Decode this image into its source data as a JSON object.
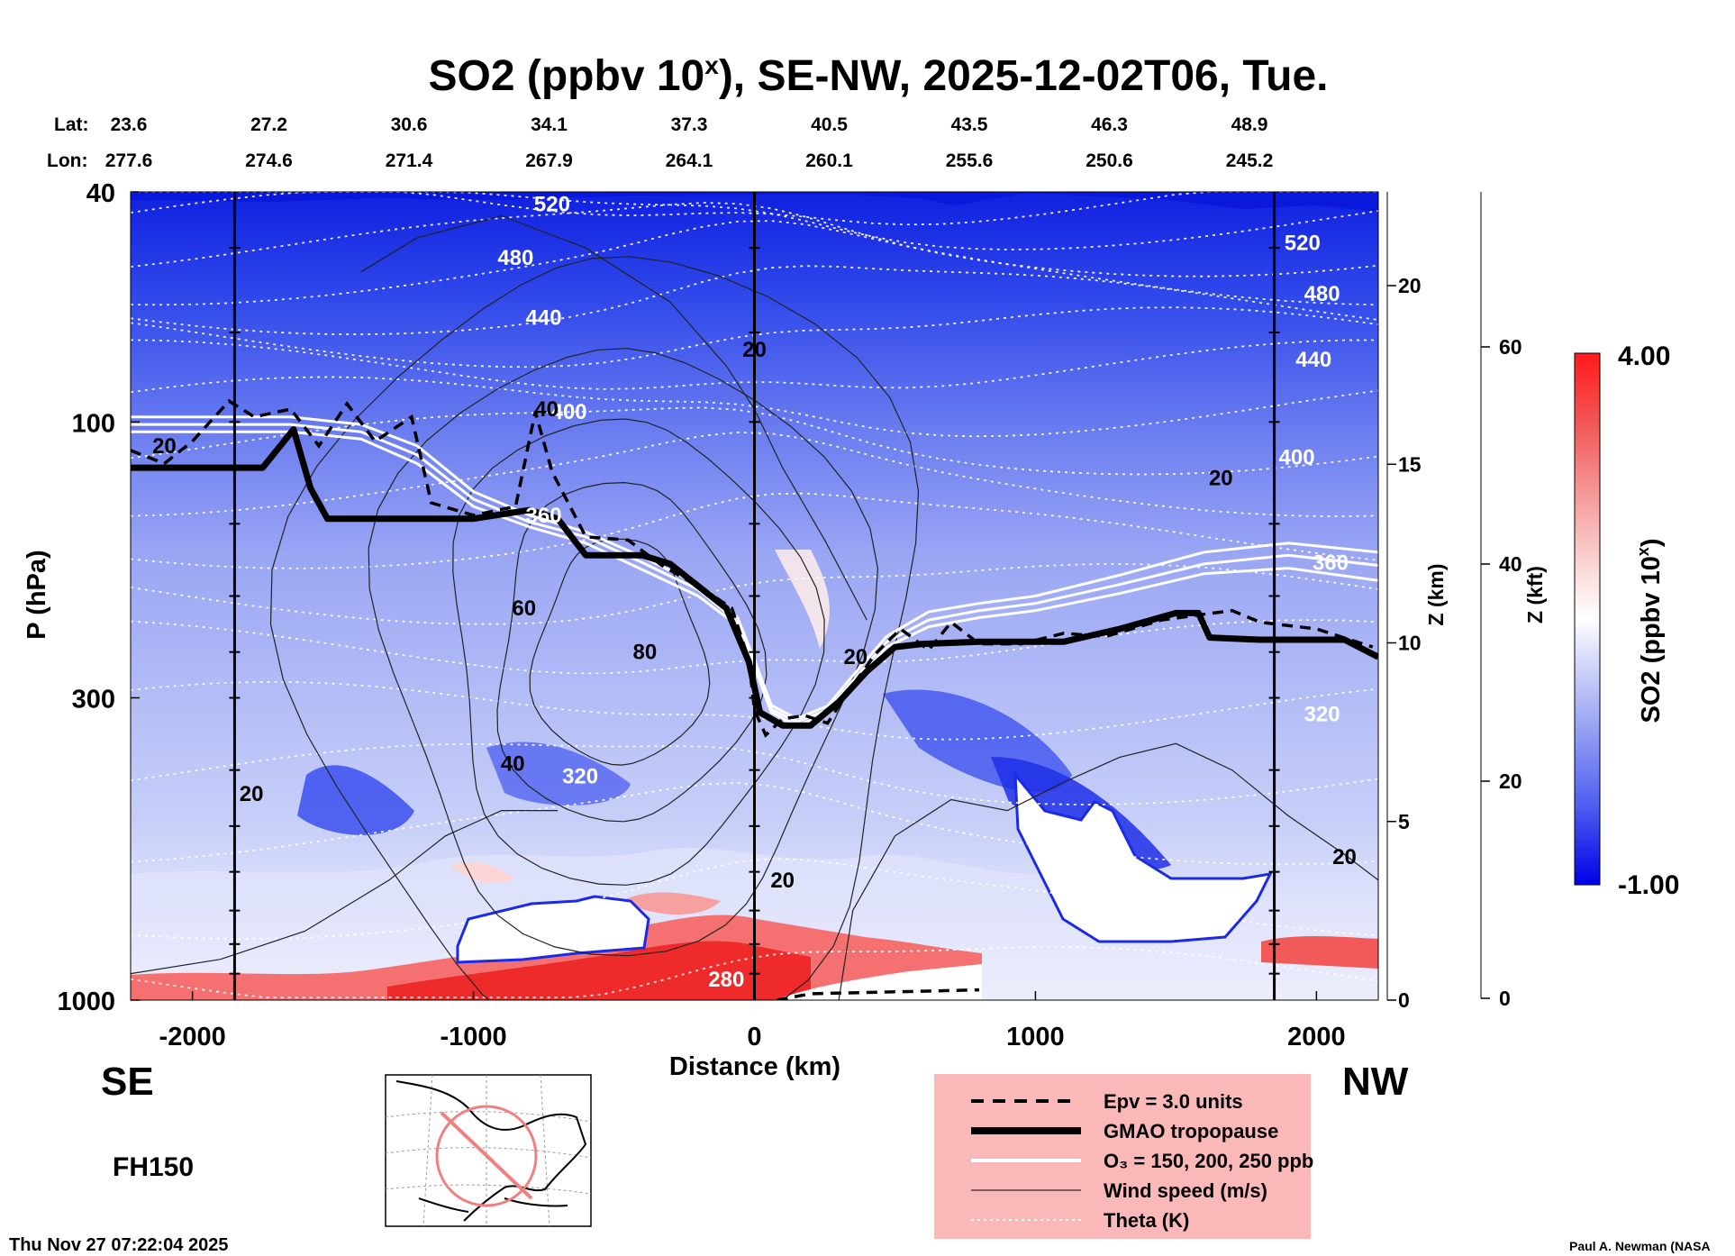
{
  "title": "SO2 (ppbv 10",
  "title_sup": "x",
  "title_rest": "), SE-NW, 2025-12-02T06, Tue.",
  "lat_label": "Lat:",
  "lon_label": "Lon:",
  "lats": [
    "23.6",
    "27.2",
    "30.6",
    "34.1",
    "37.3",
    "40.5",
    "43.5",
    "46.3",
    "48.9"
  ],
  "lons": [
    "277.6",
    "274.6",
    "271.4",
    "267.9",
    "264.1",
    "260.1",
    "255.6",
    "250.6",
    "245.2"
  ],
  "y_label": "P (hPa)",
  "x_label": "Distance (km)",
  "z_km_label": "Z (km)",
  "z_kft_label": "Z (kft)",
  "left_dir": "SE",
  "right_dir": "NW",
  "forecast_hour": "FH150",
  "timestamp": "Thu Nov 27 07:22:04 2025",
  "credit": "Paul A. Newman (NASA",
  "legend": [
    {
      "key": "epv",
      "label": "Epv = 3.0 units"
    },
    {
      "key": "trop",
      "label": "GMAO tropopause"
    },
    {
      "key": "o3",
      "label": "O₃ = 150, 200, 250 ppb"
    },
    {
      "key": "wind",
      "label": "Wind speed (m/s)"
    },
    {
      "key": "theta",
      "label": "Theta (K)"
    }
  ],
  "colorbar": {
    "label": "SO2 (ppbv 10",
    "label_sup": "x",
    "label_end": ")",
    "max_label": "4.00",
    "min_label": "-1.00",
    "vmin": -1.0,
    "vmax": 4.0,
    "colors": [
      "#0000e6",
      "#4f5ff0",
      "#9aa4f4",
      "#d4d8fa",
      "#ffffff",
      "#fcd6d6",
      "#f7a0a0",
      "#f25a5a",
      "#ff1a1a"
    ]
  },
  "chart_data": {
    "type": "heatmap",
    "title": "SO2 (ppbv 10^x), SE-NW, 2025-12-02T06, Tue.",
    "xlabel": "Distance (km)",
    "ylabel": "P (hPa)",
    "xlim": [
      -2220,
      2220
    ],
    "ylim_hpa": [
      1000,
      40
    ],
    "x_ticks": [
      -2000,
      -1000,
      0,
      1000,
      2000
    ],
    "x_tick_labels": [
      "-2000",
      "-1000",
      "0",
      "1000",
      "2000"
    ],
    "y_ticks": [
      1000,
      300,
      100,
      40
    ],
    "y_tick_labels": [
      "1000",
      "300",
      "100",
      "40"
    ],
    "z_km_ticks": [
      0,
      5,
      10,
      15,
      20
    ],
    "z_km_tick_labels": [
      "0",
      "5",
      "10",
      "15",
      "20"
    ],
    "z_kft_ticks": [
      0,
      20,
      40,
      60
    ],
    "z_kft_tick_labels": [
      "0",
      "20",
      "40",
      "60"
    ],
    "vertical_lines_km": [
      -1850,
      0,
      1850
    ],
    "colorbar_range": [
      -1.0,
      4.0
    ],
    "theta_levels": [
      {
        "value": "520",
        "label_x": -720,
        "label_p": 42
      },
      {
        "value": "480",
        "label_x": -850,
        "label_p": 52
      },
      {
        "value": "440",
        "label_x": -750,
        "label_p": 66
      },
      {
        "value": "400",
        "label_x": -660,
        "label_p": 96
      },
      {
        "value": "360",
        "label_x": -750,
        "label_p": 145
      },
      {
        "value": "320",
        "label_x": -620,
        "label_p": 410
      },
      {
        "value": "280",
        "label_x": -100,
        "label_p": 920
      },
      {
        "value": "520",
        "label_x": 1950,
        "label_p": 49
      },
      {
        "value": "480",
        "label_x": 2020,
        "label_p": 60
      },
      {
        "value": "440",
        "label_x": 1990,
        "label_p": 78
      },
      {
        "value": "400",
        "label_x": 1930,
        "label_p": 115
      },
      {
        "value": "360",
        "label_x": 2050,
        "label_p": 175
      },
      {
        "value": "320",
        "label_x": 2020,
        "label_p": 320
      }
    ],
    "wind_labels": [
      {
        "value": "20",
        "label_x": -2100,
        "label_p": 110
      },
      {
        "value": "40",
        "label_x": -740,
        "label_p": 95
      },
      {
        "value": "60",
        "label_x": -820,
        "label_p": 210
      },
      {
        "value": "80",
        "label_x": -390,
        "label_p": 250
      },
      {
        "value": "40",
        "label_x": -860,
        "label_p": 390
      },
      {
        "value": "20",
        "label_x": -1790,
        "label_p": 440
      },
      {
        "value": "20",
        "label_x": 0,
        "label_p": 75
      },
      {
        "value": "20",
        "label_x": 360,
        "label_p": 255
      },
      {
        "value": "20",
        "label_x": 100,
        "label_p": 620
      },
      {
        "value": "20",
        "label_x": 1660,
        "label_p": 125
      },
      {
        "value": "20",
        "label_x": 2100,
        "label_p": 565
      }
    ],
    "tropopause_hpa": [
      [
        -2220,
        120
      ],
      [
        -1750,
        120
      ],
      [
        -1640,
        103
      ],
      [
        -1580,
        130
      ],
      [
        -1520,
        147
      ],
      [
        -1300,
        147
      ],
      [
        -1000,
        147
      ],
      [
        -800,
        142
      ],
      [
        -700,
        147
      ],
      [
        -600,
        170
      ],
      [
        -400,
        170
      ],
      [
        -300,
        176
      ],
      [
        -100,
        210
      ],
      [
        -20,
        260
      ],
      [
        20,
        318
      ],
      [
        100,
        335
      ],
      [
        200,
        335
      ],
      [
        300,
        305
      ],
      [
        400,
        270
      ],
      [
        500,
        245
      ],
      [
        600,
        242
      ],
      [
        800,
        240
      ],
      [
        1100,
        240
      ],
      [
        1300,
        228
      ],
      [
        1500,
        214
      ],
      [
        1580,
        214
      ],
      [
        1620,
        236
      ],
      [
        1800,
        238
      ],
      [
        2100,
        238
      ],
      [
        2220,
        255
      ]
    ],
    "epv_3_hpa": [
      [
        -2220,
        112
      ],
      [
        -2100,
        118
      ],
      [
        -2000,
        108
      ],
      [
        -1870,
        92
      ],
      [
        -1780,
        98
      ],
      [
        -1650,
        95
      ],
      [
        -1550,
        110
      ],
      [
        -1450,
        93
      ],
      [
        -1350,
        108
      ],
      [
        -1220,
        98
      ],
      [
        -1150,
        138
      ],
      [
        -1000,
        145
      ],
      [
        -850,
        140
      ],
      [
        -780,
        96
      ],
      [
        -720,
        122
      ],
      [
        -600,
        158
      ],
      [
        -450,
        160
      ],
      [
        -330,
        177
      ],
      [
        -180,
        195
      ],
      [
        -80,
        210
      ],
      [
        -20,
        258
      ],
      [
        0,
        315
      ],
      [
        40,
        348
      ],
      [
        100,
        326
      ],
      [
        180,
        322
      ],
      [
        260,
        332
      ],
      [
        340,
        290
      ],
      [
        430,
        252
      ],
      [
        520,
        228
      ],
      [
        620,
        248
      ],
      [
        700,
        222
      ],
      [
        800,
        242
      ],
      [
        950,
        242
      ],
      [
        1100,
        232
      ],
      [
        1250,
        235
      ],
      [
        1450,
        220
      ],
      [
        1600,
        215
      ],
      [
        1700,
        212
      ],
      [
        1800,
        222
      ],
      [
        2000,
        228
      ],
      [
        2200,
        245
      ]
    ],
    "o3_150_hpa": [
      [
        -2220,
        104
      ],
      [
        -1650,
        104
      ],
      [
        -1400,
        107
      ],
      [
        -1200,
        118
      ],
      [
        -1000,
        140
      ],
      [
        -800,
        152
      ],
      [
        -600,
        162
      ],
      [
        -400,
        180
      ],
      [
        -200,
        200
      ],
      [
        -60,
        225
      ],
      [
        0,
        265
      ],
      [
        60,
        318
      ],
      [
        150,
        335
      ],
      [
        260,
        320
      ],
      [
        360,
        282
      ],
      [
        470,
        245
      ],
      [
        620,
        226
      ],
      [
        800,
        218
      ],
      [
        1000,
        212
      ],
      [
        1300,
        198
      ],
      [
        1600,
        183
      ],
      [
        1900,
        179
      ],
      [
        2220,
        188
      ]
    ],
    "o3_200_hpa": [
      [
        -2220,
        101
      ],
      [
        -1650,
        101
      ],
      [
        -1400,
        104
      ],
      [
        -1200,
        114
      ],
      [
        -1000,
        136
      ],
      [
        -800,
        149
      ],
      [
        -600,
        158
      ],
      [
        -400,
        175
      ],
      [
        -200,
        195
      ],
      [
        -60,
        222
      ],
      [
        0,
        262
      ],
      [
        60,
        314
      ],
      [
        150,
        330
      ],
      [
        260,
        315
      ],
      [
        360,
        277
      ],
      [
        470,
        240
      ],
      [
        620,
        220
      ],
      [
        800,
        212
      ],
      [
        1000,
        206
      ],
      [
        1300,
        191
      ],
      [
        1600,
        176
      ],
      [
        1900,
        170
      ],
      [
        2220,
        177
      ]
    ],
    "o3_250_hpa": [
      [
        -2220,
        98
      ],
      [
        -1650,
        98
      ],
      [
        -1400,
        101
      ],
      [
        -1200,
        110
      ],
      [
        -1000,
        132
      ],
      [
        -800,
        145
      ],
      [
        -600,
        155
      ],
      [
        -400,
        171
      ],
      [
        -200,
        191
      ],
      [
        -60,
        218
      ],
      [
        0,
        258
      ],
      [
        60,
        309
      ],
      [
        150,
        326
      ],
      [
        260,
        310
      ],
      [
        360,
        271
      ],
      [
        470,
        235
      ],
      [
        620,
        213
      ],
      [
        800,
        206
      ],
      [
        1000,
        200
      ],
      [
        1300,
        184
      ],
      [
        1600,
        168
      ],
      [
        1900,
        162
      ],
      [
        2220,
        168
      ]
    ]
  }
}
